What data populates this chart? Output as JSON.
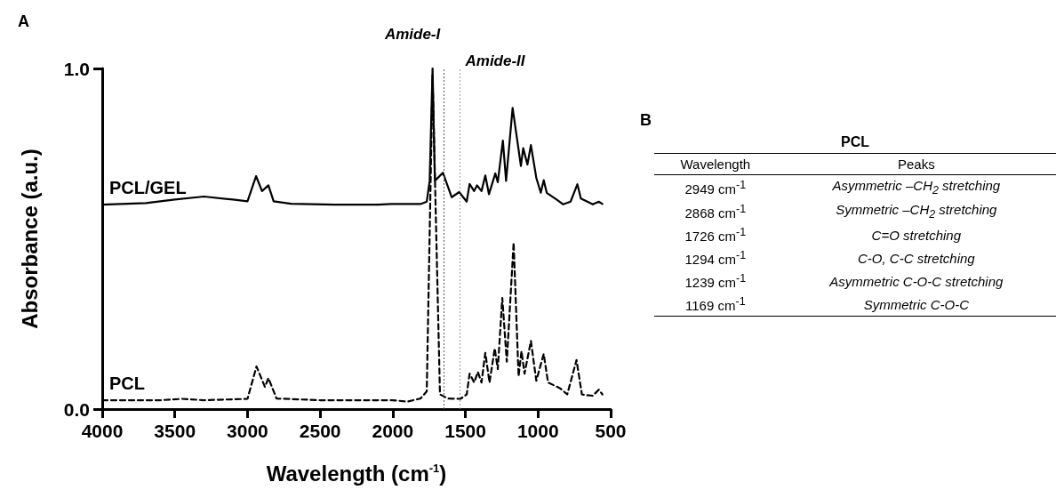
{
  "chart_data": [
    {
      "type": "line",
      "annotations": [
        "A"
      ],
      "xlabel": "Wavelength (cm$^{-1}$)",
      "ylabel": "Absorbance (a.u.)",
      "xlim": [
        4000,
        500
      ],
      "xticks": [
        4000,
        3500,
        3000,
        2500,
        2000,
        1500,
        1000,
        500
      ],
      "ylim": [
        0,
        1
      ],
      "yticks": [
        {
          "value": 0,
          "label": "0.0"
        },
        {
          "value": 1,
          "label": "1.0"
        }
      ],
      "grid": false,
      "legend": false,
      "marker": "none",
      "ref_lines": [
        {
          "axis": "x",
          "value": 1650,
          "label": "Amide-I",
          "color": "#555555",
          "line_style": "dotted"
        },
        {
          "axis": "x",
          "value": 1540,
          "label": "Amide-II",
          "color": "#999999",
          "line_style": "dotted"
        }
      ],
      "series": [
        {
          "name": "PCL/GEL",
          "color": "#000000",
          "line_style": "solid",
          "x": [
            4000,
            3700,
            3500,
            3300,
            3100,
            3000,
            2941,
            2900,
            2856,
            2820,
            2700,
            2400,
            2100,
            2011,
            1809,
            1766,
            1746,
            1726,
            1710,
            1655,
            1594,
            1543,
            1491,
            1471,
            1440,
            1420,
            1389,
            1363,
            1338,
            1294,
            1277,
            1242,
            1220,
            1175,
            1144,
            1118,
            1102,
            1073,
            1049,
            1012,
            981,
            961,
            940,
            868,
            827,
            776,
            729,
            705,
            623,
            582,
            557
          ],
          "values": [
            0.6,
            0.605,
            0.615,
            0.624,
            0.615,
            0.61,
            0.684,
            0.64,
            0.657,
            0.61,
            0.603,
            0.6,
            0.6,
            0.602,
            0.602,
            0.609,
            0.67,
            1.0,
            0.67,
            0.694,
            0.622,
            0.637,
            0.609,
            0.661,
            0.64,
            0.657,
            0.64,
            0.686,
            0.631,
            0.692,
            0.666,
            0.788,
            0.67,
            0.884,
            0.792,
            0.714,
            0.766,
            0.718,
            0.775,
            0.679,
            0.635,
            0.672,
            0.635,
            0.614,
            0.601,
            0.609,
            0.66,
            0.618,
            0.601,
            0.609,
            0.602
          ]
        },
        {
          "name": "PCL",
          "color": "#000000",
          "line_style": "dashed",
          "x": [
            4000,
            3600,
            3450,
            3300,
            3000,
            2938,
            2880,
            2856,
            2800,
            2500,
            2200,
            2001,
            1900,
            1809,
            1766,
            1726,
            1675,
            1620,
            1534,
            1491,
            1471,
            1440,
            1414,
            1389,
            1363,
            1334,
            1298,
            1277,
            1246,
            1215,
            1168,
            1134,
            1114,
            1093,
            1049,
            1012,
            961,
            931,
            848,
            799,
            735,
            698,
            623,
            582,
            557
          ],
          "values": [
            0.026,
            0.026,
            0.03,
            0.026,
            0.03,
            0.125,
            0.065,
            0.091,
            0.031,
            0.026,
            0.026,
            0.026,
            0.022,
            0.031,
            0.052,
            0.98,
            0.043,
            0.031,
            0.03,
            0.043,
            0.104,
            0.078,
            0.109,
            0.078,
            0.165,
            0.078,
            0.178,
            0.117,
            0.326,
            0.139,
            0.489,
            0.096,
            0.17,
            0.104,
            0.2,
            0.083,
            0.162,
            0.078,
            0.061,
            0.043,
            0.144,
            0.043,
            0.039,
            0.057,
            0.043
          ]
        }
      ]
    },
    {
      "type": "other",
      "title": "PCL",
      "annotations": [
        "B",
        "Wavelength",
        "Peaks",
        "2949 cm$^{-1}$",
        "Asymmetric –CH$_{2}$ stretching",
        "2868 cm$^{-1}$",
        "Symmetric –CH$_{2}$ stretching",
        "1726 cm$^{-1}$",
        "C=O stretching",
        "1294 cm$^{-1}$",
        "C-O, C-C stretching",
        "1239 cm$^{-1}$",
        "Asymmetric C-O-C stretching",
        "1169 cm$^{-1}$",
        "Symmetric C-O-C"
      ]
    }
  ]
}
